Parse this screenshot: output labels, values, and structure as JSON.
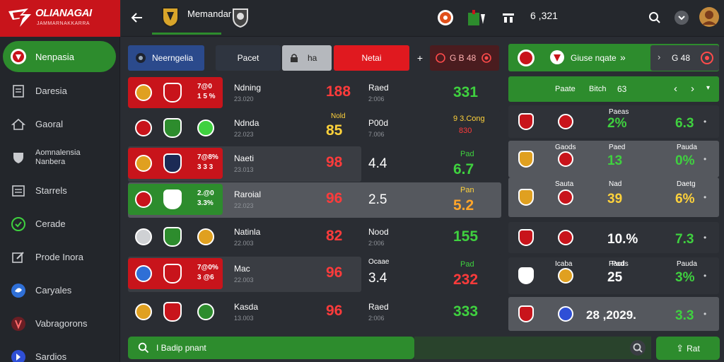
{
  "brand": {
    "title": "OLIANAGAI",
    "subtitle": "JAMMARNAKKARRA"
  },
  "sidebar": {
    "items": [
      {
        "label": "Nenpasia",
        "icon": "team-crest-icon",
        "active": true
      },
      {
        "label": "Daresia",
        "icon": "document-icon"
      },
      {
        "label": "Gaoral",
        "icon": "home-icon"
      },
      {
        "label": "Aomnalensia\nNanbera",
        "icon": "shield-icon"
      },
      {
        "label": "Starrels",
        "icon": "list-icon"
      },
      {
        "label": "Cerade",
        "icon": "circle-check-icon"
      },
      {
        "label": "Prode Inora",
        "icon": "edit-icon"
      },
      {
        "label": "Caryales",
        "icon": "globe-icon"
      },
      {
        "label": "Vabragorons",
        "icon": "medal-icon"
      },
      {
        "label": "Sardios",
        "icon": "globe-alt-icon"
      }
    ]
  },
  "topbar": {
    "title": "Memandar",
    "score": "6 ,321"
  },
  "tabs": [
    {
      "label": "Neerngelia",
      "icon": "ball-icon"
    },
    {
      "label": "Pacet"
    },
    {
      "label": "ha",
      "icon": "lock-icon"
    },
    {
      "label": "Netai"
    },
    {
      "label": "+"
    },
    {
      "label": "G B 48",
      "icon": "bet-icon"
    }
  ],
  "matches": [
    {
      "box": [
        "7@0",
        "1 5 %"
      ],
      "box_color": "red",
      "name": "Ndning",
      "date": "23.020",
      "score": "188",
      "score_color": "#ff3b3b",
      "lbl": "Raed",
      "lbl2": "2:006",
      "odd": "",
      "pre": "",
      "val": "331",
      "val_color": "#3fd13f",
      "highlight": false
    },
    {
      "box": [
        "",
        ""
      ],
      "box_color": "",
      "name": "Ndnda",
      "date": "22.023",
      "score": "85",
      "score_color": "#ffd23b",
      "score_pre": "Nold",
      "lbl": "P00d",
      "lbl2": "7.006",
      "odd": "",
      "pre": "9 3.Cong",
      "pre2": "830",
      "val": "",
      "val_color": "#ff3b3b",
      "highlight": false
    },
    {
      "box": [
        "7@8%",
        "3 3 3"
      ],
      "box_color": "red",
      "name": "Naeti",
      "date": "23.013",
      "score": "98",
      "score_color": "#ff3b3b",
      "lbl": "",
      "lbl2": "",
      "odd": "4.4",
      "pre": "Pad",
      "val": "6.7",
      "val_color": "#3fd13f",
      "highlight": true
    },
    {
      "box": [
        "2.@0",
        "3.3%"
      ],
      "box_color": "green",
      "name": "Raroial",
      "date": "22.023",
      "score": "96",
      "score_color": "#ff3b3b",
      "lbl": "",
      "lbl2": "",
      "odd": "2.5",
      "pre": "Pan",
      "val": "5.2",
      "val_color": "#ffa52a",
      "highlight": true,
      "lighter": true
    },
    {
      "box": [
        "",
        ""
      ],
      "box_color": "",
      "name": "Natinla",
      "date": "22.003",
      "score": "82",
      "score_color": "#ff3b3b",
      "lbl": "Nood",
      "lbl2": "2:006",
      "odd": "",
      "pre": "",
      "val": "155",
      "val_color": "#3fd13f",
      "highlight": false
    },
    {
      "box": [
        "7@0%",
        "3 @6"
      ],
      "box_color": "red",
      "name": "Mac",
      "date": "22.003",
      "score": "96",
      "score_color": "#ff3b3b",
      "lbl": "",
      "lbl2": "",
      "odd": "3.4",
      "pre": "Pad",
      "oddpre": "Ocaae",
      "val": "232",
      "val_color": "#ff3b3b",
      "highlight": true
    },
    {
      "box": [
        "",
        ""
      ],
      "box_color": "",
      "name": "Kasda",
      "date": "13.003",
      "score": "96",
      "score_color": "#ff3b3b",
      "lbl": "Raed",
      "lbl2": "2:006",
      "odd": "",
      "pre": "",
      "val": "333",
      "val_color": "#3fd13f",
      "highlight": false
    }
  ],
  "right_panel": {
    "top_card": {
      "label": "Giuse nqate"
    },
    "top_nav": {
      "label": "G 48"
    },
    "head": {
      "a": "Paate",
      "b": "Bitch",
      "c": "63"
    },
    "cards": [
      {
        "lbl_a": "",
        "lbl_b": "Paeas",
        "lbl_c": "",
        "pct": "2%",
        "pct_color": "#3fd13f",
        "val": "6.3",
        "val_color": "#3fd13f"
      },
      {
        "lbl_a": "Gaods",
        "lbl_b": "Paed",
        "lbl_c": "Pauda",
        "pct": "13",
        "pct_color": "#3fd13f",
        "val": "0%",
        "val_color": "#3fd13f"
      },
      {
        "lbl_a": "Sauta",
        "lbl_b": "Nad",
        "lbl_c": "Daetg",
        "pct": "39",
        "pct_color": "#ffd23b",
        "val": "6%",
        "val_color": "#ffd23b"
      },
      {
        "lbl_a": "",
        "lbl_b": "",
        "lbl_c": "",
        "pct": "10.%",
        "pct_color": "#ffffff",
        "val": "7.3",
        "val_color": "#3fd13f"
      },
      {
        "lbl_a": "Icaba",
        "lbl_b": "Pacds",
        "lbl_c": "Pauda",
        "mid": "Pad",
        "pct": "25",
        "pct_color": "#ffffff",
        "val": "3%",
        "val_color": "#3fd13f"
      },
      {
        "lbl_a": "",
        "lbl_b": "",
        "lbl_c": "",
        "pct": "28 ,2029.",
        "pct_color": "#ffffff",
        "val": "3.3",
        "val_color": "#3fd13f"
      }
    ]
  },
  "bottom": {
    "search_placeholder": "I Badip pnant",
    "action_label": "Rat"
  }
}
